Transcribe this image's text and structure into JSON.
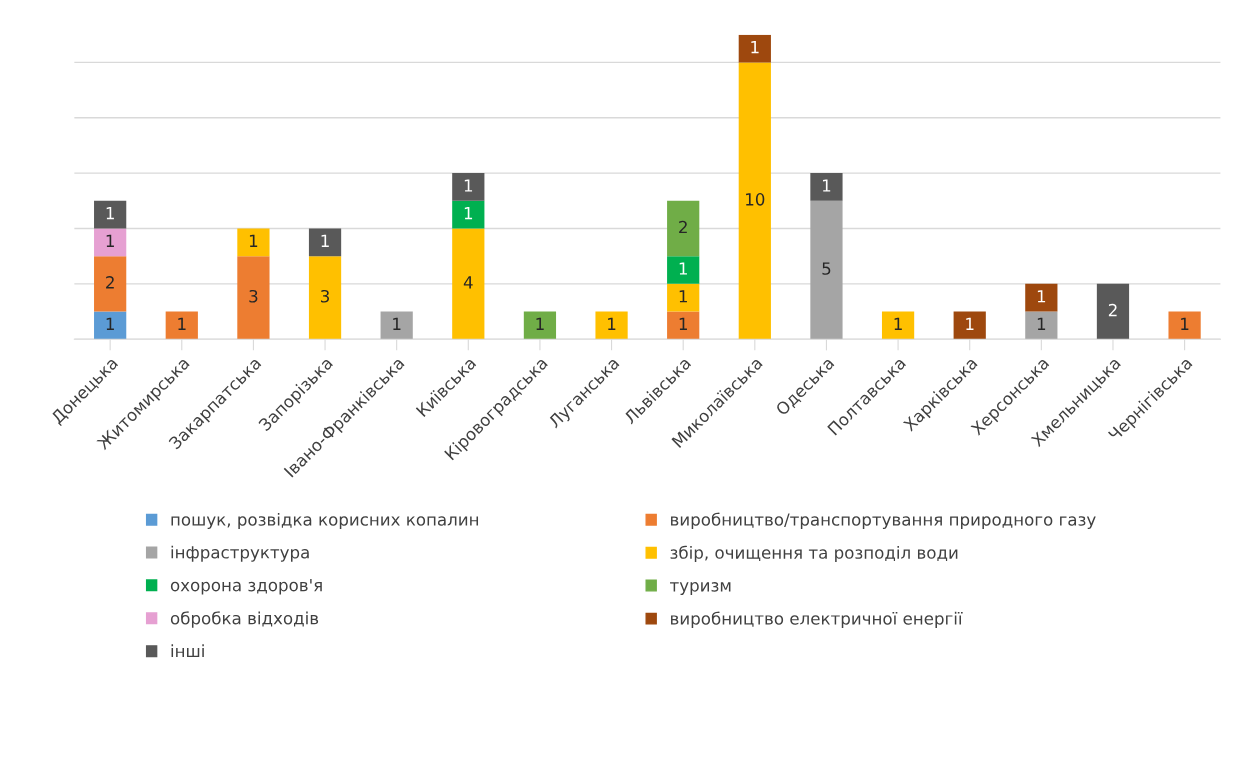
{
  "chart_data": {
    "type": "bar",
    "stacked": true,
    "data_labels": true,
    "grid": "y",
    "legend": "bottom",
    "categories": [
      "Донецька",
      "Житомирська",
      "Закарпатська",
      "Запорізька",
      "Івано-Франківська",
      "Київська",
      "Кіровоградська",
      "Луганська",
      "Львівська",
      "Миколаївська",
      "Одеська",
      "Полтавська",
      "Харківська",
      "Херсонська",
      "Хмельницька",
      "Чернігівська"
    ],
    "ylim": [
      0,
      11
    ],
    "yticks": [
      {
        "value": 0,
        "label": null
      },
      {
        "value": 2,
        "label": null
      },
      {
        "value": 4,
        "label": null
      },
      {
        "value": 6,
        "label": null
      },
      {
        "value": 8,
        "label": null
      },
      {
        "value": 10,
        "label": null
      }
    ],
    "tick_labels": "x",
    "series": [
      {
        "name": "пошук, розвідка корисних копалин",
        "color": "#5b9bd5",
        "values": [
          1,
          null,
          null,
          null,
          null,
          null,
          null,
          null,
          null,
          null,
          null,
          null,
          null,
          null,
          null,
          null
        ]
      },
      {
        "name": "виробництво/транспортування природного газу",
        "color": "#ed7d31",
        "values": [
          2,
          1,
          3,
          null,
          null,
          null,
          null,
          null,
          1,
          null,
          null,
          null,
          null,
          null,
          null,
          1
        ]
      },
      {
        "name": "інфраструктура",
        "color": "#a5a5a5",
        "values": [
          null,
          null,
          null,
          null,
          1,
          null,
          null,
          null,
          null,
          null,
          5,
          null,
          null,
          1,
          null,
          null
        ]
      },
      {
        "name": "збір, очищення та розподіл води",
        "color": "#ffc000",
        "values": [
          null,
          null,
          1,
          3,
          null,
          4,
          null,
          1,
          1,
          10,
          null,
          1,
          null,
          null,
          null,
          null
        ]
      },
      {
        "name": "охорона здоров'я",
        "color": "#00b050",
        "values": [
          null,
          null,
          null,
          null,
          null,
          1,
          null,
          null,
          1,
          null,
          null,
          null,
          null,
          null,
          null,
          null
        ]
      },
      {
        "name": "туризм",
        "color": "#70ad47",
        "values": [
          null,
          null,
          null,
          null,
          null,
          null,
          1,
          null,
          2,
          null,
          null,
          null,
          null,
          null,
          null,
          null
        ]
      },
      {
        "name": "обробка відходів",
        "color": "#e6a0d2",
        "values": [
          1,
          null,
          null,
          null,
          null,
          null,
          null,
          null,
          null,
          null,
          null,
          null,
          null,
          null,
          null,
          null
        ]
      },
      {
        "name": "виробництво електричної енергії",
        "color": "#9e480e",
        "values": [
          null,
          null,
          null,
          null,
          null,
          null,
          null,
          null,
          null,
          1,
          null,
          null,
          1,
          1,
          null,
          null
        ]
      },
      {
        "name": "інші",
        "color": "#595959",
        "values": [
          1,
          null,
          null,
          1,
          null,
          1,
          null,
          null,
          null,
          null,
          1,
          null,
          null,
          null,
          2,
          null
        ]
      }
    ]
  }
}
